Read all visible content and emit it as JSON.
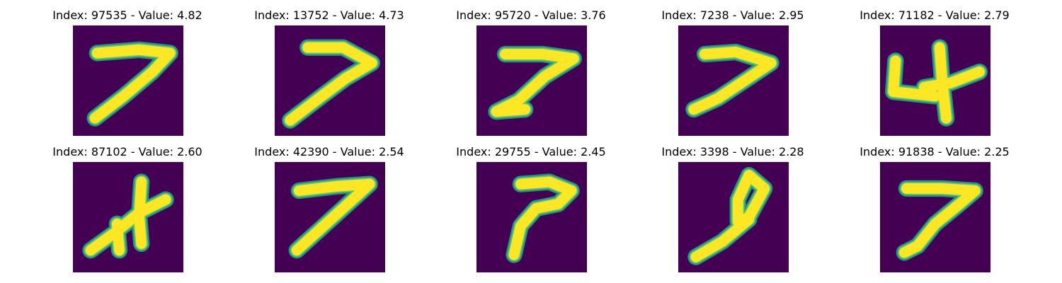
{
  "colors": {
    "background": "#440154",
    "stroke_edge": "#21918c",
    "stroke_mid": "#5ec962",
    "stroke_core": "#fde725"
  },
  "panels": [
    {
      "title": "Index: 97535 - Value: 4.82",
      "digit": "7",
      "strokes": [
        [
          [
            0.22,
            0.25
          ],
          [
            0.6,
            0.22
          ],
          [
            0.88,
            0.25
          ],
          [
            0.72,
            0.42
          ],
          [
            0.46,
            0.64
          ],
          [
            0.2,
            0.84
          ]
        ]
      ]
    },
    {
      "title": "Index: 13752 - Value: 4.73",
      "digit": "7",
      "strokes": [
        [
          [
            0.3,
            0.2
          ],
          [
            0.62,
            0.2
          ],
          [
            0.88,
            0.34
          ],
          [
            0.64,
            0.48
          ],
          [
            0.4,
            0.66
          ],
          [
            0.14,
            0.86
          ]
        ]
      ]
    },
    {
      "title": "Index: 95720 - Value: 3.76",
      "digit": "7",
      "strokes": [
        [
          [
            0.26,
            0.26
          ],
          [
            0.6,
            0.26
          ],
          [
            0.88,
            0.3
          ],
          [
            0.62,
            0.46
          ],
          [
            0.38,
            0.68
          ],
          [
            0.18,
            0.78
          ],
          [
            0.44,
            0.76
          ]
        ]
      ]
    },
    {
      "title": "Index: 7238 - Value: 2.95",
      "digit": "7",
      "strokes": [
        [
          [
            0.24,
            0.26
          ],
          [
            0.52,
            0.24
          ],
          [
            0.84,
            0.34
          ],
          [
            0.6,
            0.5
          ],
          [
            0.36,
            0.66
          ],
          [
            0.14,
            0.76
          ]
        ]
      ]
    },
    {
      "title": "Index: 71182 - Value: 2.79",
      "digit": "4",
      "strokes": [
        [
          [
            0.14,
            0.32
          ],
          [
            0.12,
            0.6
          ],
          [
            0.5,
            0.64
          ]
        ],
        [
          [
            0.54,
            0.2
          ],
          [
            0.56,
            0.48
          ],
          [
            0.6,
            0.84
          ]
        ],
        [
          [
            0.4,
            0.56
          ],
          [
            0.64,
            0.52
          ],
          [
            0.9,
            0.42
          ]
        ]
      ]
    },
    {
      "title": "Index: 87102 - Value: 2.60",
      "digit": "7",
      "strokes": [
        [
          [
            0.16,
            0.8
          ],
          [
            0.38,
            0.64
          ],
          [
            0.6,
            0.46
          ],
          [
            0.84,
            0.34
          ]
        ],
        [
          [
            0.62,
            0.18
          ],
          [
            0.6,
            0.5
          ],
          [
            0.62,
            0.74
          ]
        ],
        [
          [
            0.4,
            0.56
          ],
          [
            0.42,
            0.8
          ]
        ]
      ]
    },
    {
      "title": "Index: 42390 - Value: 2.54",
      "digit": "7",
      "strokes": [
        [
          [
            0.22,
            0.26
          ],
          [
            0.56,
            0.22
          ],
          [
            0.86,
            0.2
          ],
          [
            0.64,
            0.4
          ],
          [
            0.42,
            0.6
          ],
          [
            0.2,
            0.8
          ]
        ]
      ]
    },
    {
      "title": "Index: 29755 - Value: 2.45",
      "digit": "7",
      "strokes": [
        [
          [
            0.4,
            0.2
          ],
          [
            0.66,
            0.18
          ],
          [
            0.86,
            0.26
          ],
          [
            0.74,
            0.38
          ],
          [
            0.54,
            0.42
          ],
          [
            0.4,
            0.58
          ],
          [
            0.34,
            0.84
          ]
        ]
      ]
    },
    {
      "title": "Index: 3398 - Value: 2.28",
      "digit": "9",
      "strokes": [
        [
          [
            0.64,
            0.12
          ],
          [
            0.78,
            0.24
          ],
          [
            0.64,
            0.5
          ],
          [
            0.54,
            0.54
          ],
          [
            0.54,
            0.34
          ],
          [
            0.64,
            0.12
          ]
        ],
        [
          [
            0.64,
            0.52
          ],
          [
            0.4,
            0.72
          ],
          [
            0.16,
            0.86
          ]
        ]
      ]
    },
    {
      "title": "Index: 91838 - Value: 2.25",
      "digit": "7",
      "strokes": [
        [
          [
            0.24,
            0.24
          ],
          [
            0.56,
            0.24
          ],
          [
            0.86,
            0.26
          ],
          [
            0.72,
            0.38
          ],
          [
            0.5,
            0.56
          ],
          [
            0.34,
            0.76
          ],
          [
            0.22,
            0.82
          ]
        ]
      ]
    }
  ]
}
